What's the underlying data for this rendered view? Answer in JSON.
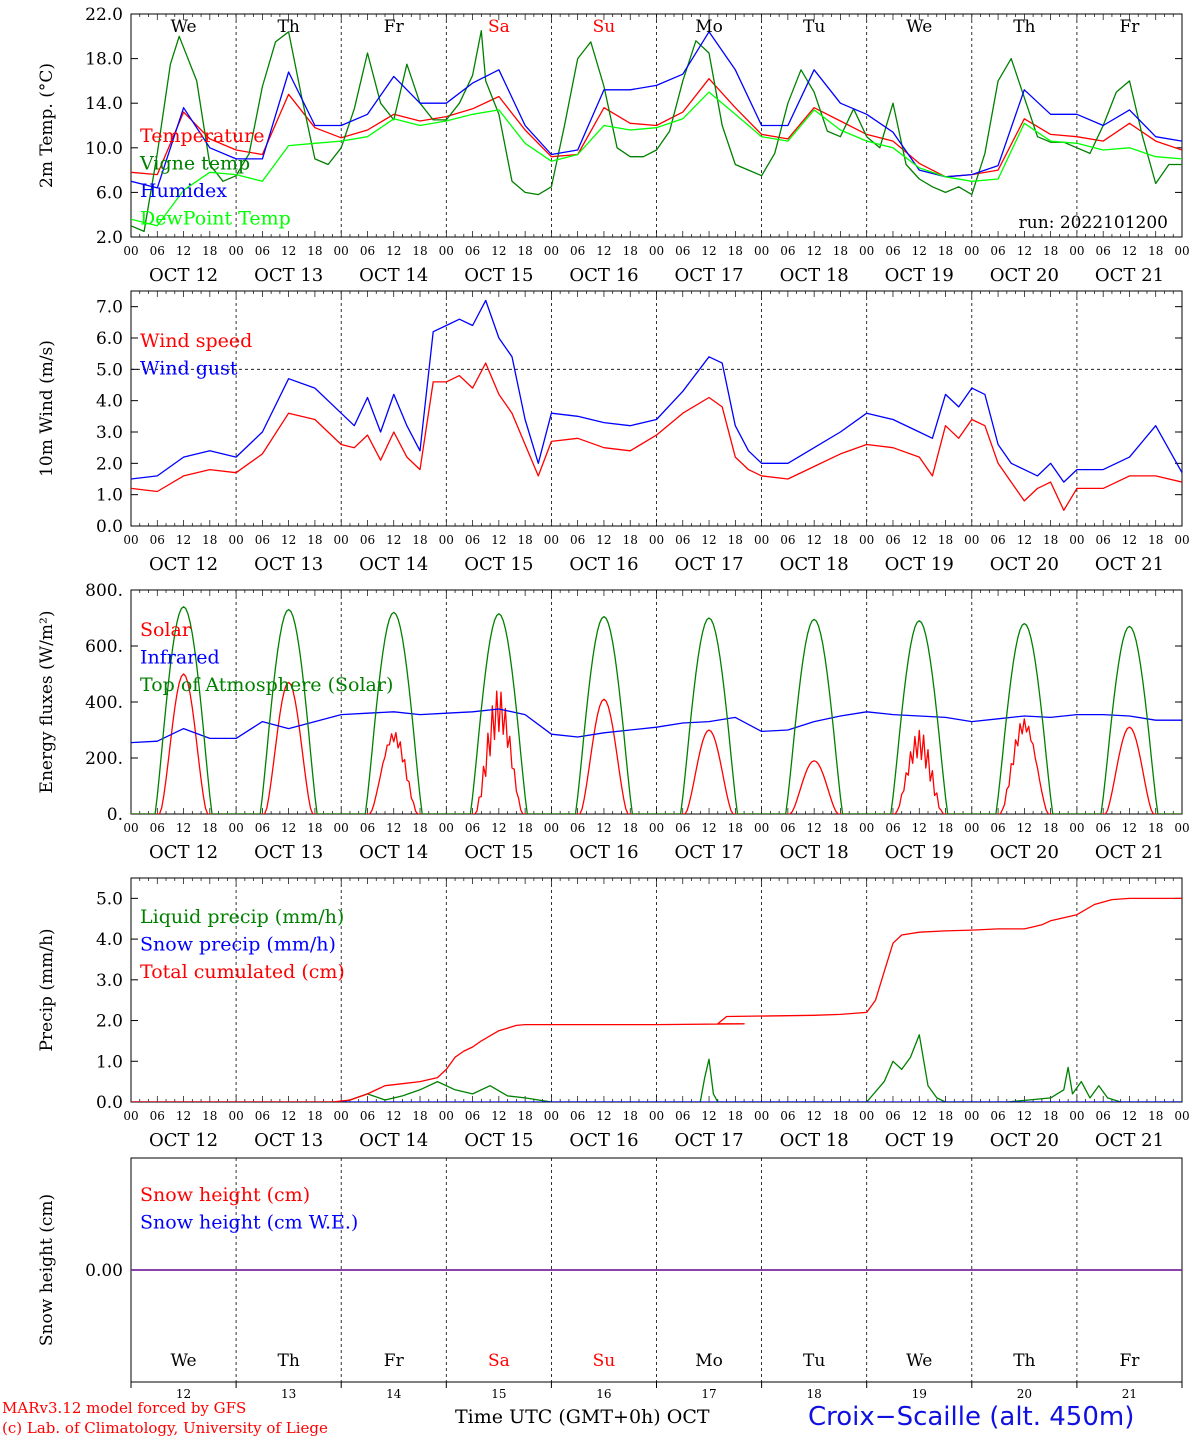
{
  "days": {
    "top_labels": [
      "We",
      "Th",
      "Fr",
      "Sa",
      "Su",
      "Mo",
      "Tu",
      "We",
      "Th",
      "Fr"
    ],
    "weekend_indices": [
      3,
      4
    ],
    "date_labels": [
      "OCT 12",
      "OCT 13",
      "OCT 14",
      "OCT 15",
      "OCT 16",
      "OCT 17",
      "OCT 18",
      "OCT 19",
      "OCT 20",
      "OCT 21"
    ],
    "hour_ticks": [
      "00",
      "06",
      "12",
      "18"
    ],
    "bottom_numbers": [
      "12",
      "13",
      "14",
      "15",
      "16",
      "17",
      "18",
      "19",
      "20",
      "21"
    ],
    "weekend_color": "#ff0000"
  },
  "chart_data": [
    {
      "type": "line",
      "ylabel": "2m Temp. (°C)",
      "ylim": [
        2.0,
        22.0
      ],
      "yticks": [
        "2.0",
        "6.0",
        "10.0",
        "14.0",
        "18.0",
        "22.0"
      ],
      "run_label": "run: 2022101200",
      "x_unit": "hours from Oct 12 00 UTC",
      "series": [
        {
          "name": "Temperature",
          "color": "#ff0000",
          "x": [
            0,
            6,
            12,
            18,
            24,
            30,
            36,
            42,
            48,
            54,
            60,
            66,
            72,
            78,
            84,
            90,
            96,
            102,
            108,
            114,
            120,
            126,
            132,
            138,
            144,
            150,
            156,
            162,
            168,
            174,
            180,
            186,
            192,
            198,
            204,
            210,
            216,
            222,
            228,
            234,
            240
          ],
          "values": [
            7.8,
            7.6,
            13.2,
            10.8,
            9.8,
            9.4,
            14.8,
            11.8,
            10.9,
            11.6,
            13.0,
            12.4,
            12.8,
            13.5,
            14.6,
            11.6,
            9.2,
            9.4,
            13.6,
            12.2,
            12.0,
            13.2,
            16.2,
            13.6,
            11.2,
            10.8,
            13.6,
            12.4,
            11.2,
            10.6,
            8.6,
            7.4,
            7.6,
            8.0,
            12.6,
            11.2,
            11.0,
            10.6,
            12.2,
            10.6,
            9.8
          ]
        },
        {
          "name": "Vigne temp",
          "color": "#008000",
          "x": [
            0,
            3,
            6,
            9,
            11,
            15,
            18,
            21,
            24,
            27,
            30,
            33,
            36,
            39,
            42,
            45,
            48,
            51,
            54,
            57,
            60,
            63,
            66,
            69,
            72,
            75,
            78,
            80,
            81,
            84,
            87,
            90,
            93,
            96,
            99,
            102,
            105,
            108,
            111,
            114,
            117,
            120,
            123,
            126,
            129,
            132,
            135,
            138,
            141,
            144,
            147,
            150,
            153,
            156,
            159,
            162,
            165,
            168,
            171,
            174,
            177,
            180,
            183,
            186,
            189,
            192,
            195,
            198,
            201,
            204,
            207,
            210,
            213,
            216,
            219,
            222,
            225,
            228,
            231,
            234,
            237,
            240
          ],
          "values": [
            3.0,
            2.5,
            9.5,
            17.5,
            20.0,
            16.0,
            8.5,
            7.0,
            7.5,
            9.5,
            15.5,
            19.5,
            20.4,
            14.5,
            9.0,
            8.5,
            10.0,
            13.5,
            18.5,
            14.0,
            12.5,
            17.5,
            14.0,
            12.5,
            12.5,
            14.0,
            16.5,
            20.5,
            16.0,
            13.0,
            7.0,
            6.0,
            5.8,
            6.5,
            12.0,
            18.0,
            19.5,
            15.5,
            10.0,
            9.2,
            9.2,
            9.8,
            11.5,
            16.0,
            19.6,
            18.5,
            12.0,
            8.5,
            8.0,
            7.5,
            9.5,
            14.0,
            17.0,
            15.0,
            11.5,
            11.0,
            13.5,
            11.0,
            10.0,
            14.0,
            8.5,
            7.2,
            6.5,
            6.0,
            6.5,
            5.8,
            9.5,
            16.0,
            18.0,
            14.5,
            11.0,
            10.5,
            10.5,
            10.0,
            9.5,
            12.0,
            15.0,
            16.0,
            11.0,
            6.8,
            8.5,
            8.5
          ]
        },
        {
          "name": "Humidex",
          "color": "#0000ff",
          "x": [
            0,
            6,
            12,
            18,
            24,
            30,
            36,
            42,
            48,
            54,
            60,
            66,
            72,
            78,
            84,
            90,
            96,
            102,
            108,
            114,
            120,
            126,
            132,
            138,
            144,
            150,
            156,
            162,
            168,
            174,
            180,
            186,
            192,
            198,
            204,
            210,
            216,
            222,
            228,
            234,
            240
          ],
          "values": [
            7.0,
            6.4,
            13.6,
            10.0,
            9.0,
            9.0,
            16.8,
            12.0,
            12.0,
            13.0,
            16.4,
            14.0,
            14.0,
            15.8,
            17.0,
            12.0,
            9.4,
            9.8,
            15.2,
            15.2,
            15.6,
            16.6,
            20.4,
            17.0,
            12.0,
            12.0,
            17.0,
            14.0,
            13.0,
            11.4,
            8.0,
            7.4,
            7.6,
            8.4,
            15.2,
            13.0,
            13.0,
            12.0,
            13.4,
            11.0,
            10.6
          ]
        },
        {
          "name": "DewPoint Temp",
          "color": "#00ff00",
          "x": [
            0,
            6,
            12,
            18,
            24,
            30,
            36,
            42,
            48,
            54,
            60,
            66,
            72,
            78,
            84,
            90,
            96,
            102,
            108,
            114,
            120,
            126,
            132,
            138,
            144,
            150,
            156,
            162,
            168,
            174,
            180,
            186,
            192,
            198,
            204,
            210,
            216,
            222,
            228,
            234,
            240
          ],
          "values": [
            3.6,
            3.0,
            6.2,
            7.8,
            7.6,
            7.0,
            10.2,
            10.4,
            10.6,
            11.0,
            12.6,
            12.0,
            12.4,
            13.0,
            13.4,
            10.4,
            8.8,
            9.4,
            12.0,
            11.6,
            11.8,
            12.6,
            15.0,
            13.0,
            11.0,
            10.6,
            13.4,
            11.6,
            10.6,
            10.0,
            8.2,
            7.4,
            7.0,
            7.2,
            12.2,
            10.6,
            10.4,
            9.8,
            10.0,
            9.2,
            9.0
          ]
        }
      ]
    },
    {
      "type": "line",
      "ylabel": "10m Wind (m/s)",
      "ylim": [
        0.0,
        7.5
      ],
      "yticks": [
        "0.0",
        "1.0",
        "2.0",
        "3.0",
        "4.0",
        "5.0",
        "6.0",
        "7.0"
      ],
      "reference_line": 5.0,
      "series": [
        {
          "name": "Wind speed",
          "color": "#ff0000",
          "x": [
            0,
            6,
            12,
            18,
            24,
            30,
            36,
            42,
            48,
            51,
            54,
            57,
            60,
            63,
            66,
            69,
            72,
            75,
            78,
            81,
            84,
            87,
            90,
            93,
            96,
            102,
            108,
            114,
            120,
            126,
            132,
            135,
            138,
            141,
            144,
            150,
            156,
            162,
            168,
            174,
            180,
            183,
            186,
            189,
            192,
            195,
            198,
            201,
            204,
            207,
            210,
            213,
            216,
            222,
            228,
            234,
            240
          ],
          "values": [
            1.2,
            1.1,
            1.6,
            1.8,
            1.7,
            2.3,
            3.6,
            3.4,
            2.6,
            2.5,
            2.9,
            2.1,
            3.0,
            2.2,
            1.8,
            4.6,
            4.6,
            4.8,
            4.4,
            5.2,
            4.2,
            3.6,
            2.6,
            1.6,
            2.7,
            2.8,
            2.5,
            2.4,
            2.9,
            3.6,
            4.1,
            3.8,
            2.2,
            1.8,
            1.6,
            1.5,
            1.9,
            2.3,
            2.6,
            2.5,
            2.2,
            1.6,
            3.2,
            2.8,
            3.4,
            3.2,
            2.0,
            1.4,
            0.8,
            1.2,
            1.4,
            0.5,
            1.2,
            1.2,
            1.6,
            1.6,
            1.4
          ]
        },
        {
          "name": "Wind gust",
          "color": "#0000ff",
          "x": [
            0,
            6,
            12,
            18,
            24,
            30,
            36,
            42,
            48,
            51,
            54,
            57,
            60,
            63,
            66,
            69,
            72,
            75,
            78,
            81,
            84,
            87,
            90,
            93,
            96,
            102,
            108,
            114,
            120,
            126,
            132,
            135,
            138,
            141,
            144,
            150,
            156,
            162,
            168,
            174,
            180,
            183,
            186,
            189,
            192,
            195,
            198,
            201,
            204,
            207,
            210,
            213,
            216,
            222,
            228,
            234,
            240
          ],
          "values": [
            1.5,
            1.6,
            2.2,
            2.4,
            2.2,
            3.0,
            4.7,
            4.4,
            3.6,
            3.2,
            4.1,
            3.0,
            4.2,
            3.2,
            2.4,
            6.2,
            6.4,
            6.6,
            6.4,
            7.2,
            6.0,
            5.4,
            3.4,
            2.0,
            3.6,
            3.5,
            3.3,
            3.2,
            3.4,
            4.3,
            5.4,
            5.2,
            3.2,
            2.4,
            2.0,
            2.0,
            2.5,
            3.0,
            3.6,
            3.4,
            3.0,
            2.8,
            4.2,
            3.8,
            4.4,
            4.2,
            2.6,
            2.0,
            1.8,
            1.6,
            2.0,
            1.4,
            1.8,
            1.8,
            2.2,
            3.2,
            1.7
          ]
        }
      ]
    },
    {
      "type": "line",
      "ylabel": "Energy fluxes (W/m²)",
      "ylim": [
        0,
        800
      ],
      "yticks": [
        "0.",
        "200.",
        "400.",
        "600.",
        "800."
      ],
      "series": [
        {
          "name": "Solar",
          "color": "#ff0000",
          "peaks": [
            500,
            470,
            330,
            460,
            410,
            300,
            190,
            310,
            380,
            310
          ]
        },
        {
          "name": "Infrared",
          "color": "#0000ff",
          "x": [
            0,
            6,
            12,
            18,
            24,
            30,
            36,
            42,
            48,
            54,
            60,
            66,
            72,
            78,
            84,
            90,
            96,
            102,
            108,
            114,
            120,
            126,
            132,
            138,
            144,
            150,
            156,
            162,
            168,
            174,
            180,
            186,
            192,
            198,
            204,
            210,
            216,
            222,
            228,
            234,
            240
          ],
          "values": [
            255,
            260,
            305,
            270,
            270,
            330,
            305,
            330,
            355,
            360,
            365,
            355,
            360,
            365,
            375,
            355,
            285,
            275,
            290,
            300,
            310,
            325,
            330,
            345,
            295,
            300,
            330,
            350,
            365,
            355,
            350,
            345,
            330,
            340,
            350,
            345,
            355,
            355,
            350,
            335,
            335
          ]
        },
        {
          "name": "Top of Atmosphere (Solar)",
          "color": "#008000",
          "peaks": [
            740,
            730,
            720,
            715,
            705,
            700,
            695,
            690,
            680,
            670
          ]
        }
      ]
    },
    {
      "type": "line",
      "ylabel": "Precip (mm/h)",
      "ylim": [
        0.0,
        5.5
      ],
      "yticks": [
        "0.0",
        "1.0",
        "2.0",
        "3.0",
        "4.0",
        "5.0"
      ],
      "series": [
        {
          "name": "Liquid precip (mm/h)",
          "color": "#008000",
          "x": [
            0,
            48,
            50,
            54,
            58,
            62,
            66,
            70,
            74,
            78,
            82,
            86,
            90,
            96,
            130,
            131,
            132,
            133,
            134,
            168,
            172,
            174,
            176,
            178,
            180,
            182,
            184,
            186,
            200,
            205,
            210,
            213,
            214,
            215,
            217,
            219,
            221,
            223,
            226,
            240
          ],
          "values": [
            0,
            0,
            0.05,
            0.2,
            0.05,
            0.15,
            0.3,
            0.5,
            0.3,
            0.2,
            0.4,
            0.15,
            0.1,
            0,
            0,
            0.6,
            1.05,
            0.2,
            0,
            0,
            0.5,
            1.0,
            0.8,
            1.1,
            1.65,
            0.4,
            0.1,
            0,
            0,
            0.05,
            0.1,
            0.3,
            0.85,
            0.2,
            0.5,
            0.1,
            0.4,
            0.1,
            0,
            0
          ]
        },
        {
          "name": "Snow precip (mm/h)",
          "color": "#0000ff",
          "x": [
            0,
            240
          ],
          "values": [
            0,
            0
          ]
        },
        {
          "name": "Total cumulated (cm)",
          "color": "#ff0000",
          "x": [
            0,
            46,
            50,
            54,
            58,
            62,
            66,
            70,
            72,
            74,
            76,
            78,
            80,
            84,
            88,
            90,
            120,
            140,
            134,
            136,
            150,
            156,
            162,
            168,
            170,
            172,
            174,
            176,
            180,
            186,
            192,
            198,
            204,
            206,
            208,
            210,
            216,
            220,
            224,
            228,
            234,
            240
          ],
          "values": [
            0,
            0,
            0.05,
            0.2,
            0.4,
            0.45,
            0.5,
            0.6,
            0.8,
            1.1,
            1.25,
            1.35,
            1.5,
            1.75,
            1.88,
            1.9,
            1.9,
            1.92,
            1.92,
            2.1,
            2.12,
            2.13,
            2.15,
            2.2,
            2.5,
            3.2,
            3.9,
            4.1,
            4.17,
            4.2,
            4.22,
            4.25,
            4.25,
            4.3,
            4.35,
            4.45,
            4.6,
            4.85,
            4.97,
            5.0,
            5.0,
            5.0
          ]
        }
      ]
    },
    {
      "type": "line",
      "ylabel": "Snow height (cm)",
      "yticks": [
        "0.00"
      ],
      "series": [
        {
          "name": "Snow height (cm)",
          "color": "#ff0000",
          "x": [
            0,
            240
          ],
          "values": [
            0,
            0
          ]
        },
        {
          "name": "Snow height (cm W.E.)",
          "color": "#0000ff",
          "x": [
            0,
            240
          ],
          "values": [
            0,
            0
          ]
        }
      ]
    }
  ],
  "footer": {
    "credit_line1": "MARv3.12 model forced by GFS",
    "credit_line2": "(c) Lab. of Climatology, University of Liege",
    "time_axis_label": "Time UTC (GMT+0h)",
    "month_label": "OCT",
    "station": "Croix−Scaille (alt. 450m)"
  }
}
